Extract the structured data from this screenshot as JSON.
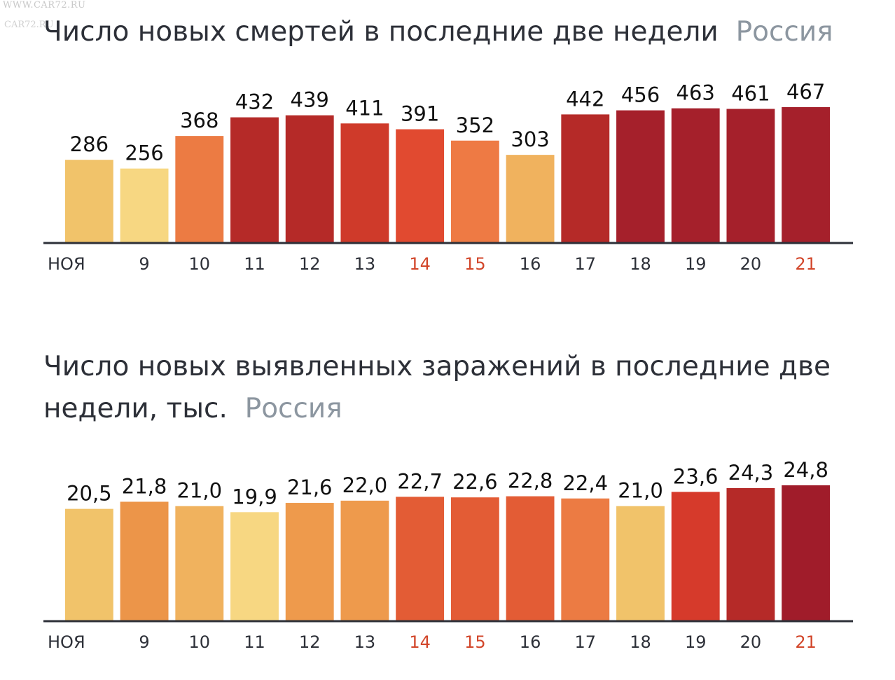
{
  "watermark": "WWW.CAR72.RU",
  "watermark_small": "CAR72.RU",
  "charts": {
    "deaths": {
      "title": "Число новых смертей в последние две недели",
      "region": "Россия"
    },
    "infections": {
      "title": "Число новых выявленных заражений в последние две недели, тыс.",
      "region": "Россия"
    }
  },
  "chart_data": [
    {
      "type": "bar",
      "title": "Число новых смертей в последние две недели",
      "subtitle": "Россия",
      "categories": [
        "НОЯ",
        "9",
        "10",
        "11",
        "12",
        "13",
        "14",
        "15",
        "16",
        "17",
        "18",
        "19",
        "20",
        "21"
      ],
      "values": [
        286,
        256,
        368,
        432,
        439,
        411,
        391,
        352,
        303,
        442,
        456,
        463,
        461,
        467
      ],
      "value_labels": [
        "286",
        "256",
        "368",
        "432",
        "439",
        "411",
        "391",
        "352",
        "303",
        "442",
        "456",
        "463",
        "461",
        "467"
      ],
      "bar_colors": [
        "#f1c36a",
        "#f7d782",
        "#ec7b43",
        "#b52a28",
        "#b52a28",
        "#cf3a2a",
        "#e14a30",
        "#ee7a44",
        "#f0b25e",
        "#b52a28",
        "#a5202b",
        "#a5202b",
        "#a5202b",
        "#a5202b"
      ],
      "highlight_ticks": [
        "14",
        "15",
        "21"
      ],
      "highlight_color": "#d2462a",
      "tick_color": "#2d3038",
      "ylim": [
        0,
        467
      ]
    },
    {
      "type": "bar",
      "title": "Число новых выявленных заражений в последние две недели, тыс.",
      "subtitle": "Россия",
      "categories": [
        "НОЯ",
        "9",
        "10",
        "11",
        "12",
        "13",
        "14",
        "15",
        "16",
        "17",
        "18",
        "19",
        "20",
        "21"
      ],
      "values": [
        20.5,
        21.8,
        21.0,
        19.9,
        21.6,
        22.0,
        22.7,
        22.6,
        22.8,
        22.4,
        21.0,
        23.6,
        24.3,
        24.8
      ],
      "value_labels": [
        "20,5",
        "21,8",
        "21,0",
        "19,9",
        "21,6",
        "22,0",
        "22,7",
        "22,6",
        "22,8",
        "22,4",
        "21,0",
        "23,6",
        "24,3",
        "24,8"
      ],
      "bar_colors": [
        "#f1c36a",
        "#ec9549",
        "#f0b25e",
        "#f7d782",
        "#ee9a4c",
        "#ee9a4c",
        "#e35c35",
        "#e35c35",
        "#e35c35",
        "#ec7b43",
        "#f1c36a",
        "#d63a2b",
        "#b52a28",
        "#a01c2a"
      ],
      "highlight_ticks": [
        "14",
        "15",
        "21"
      ],
      "highlight_color": "#d2462a",
      "tick_color": "#2d3038",
      "ylim": [
        0,
        24.8
      ]
    }
  ]
}
